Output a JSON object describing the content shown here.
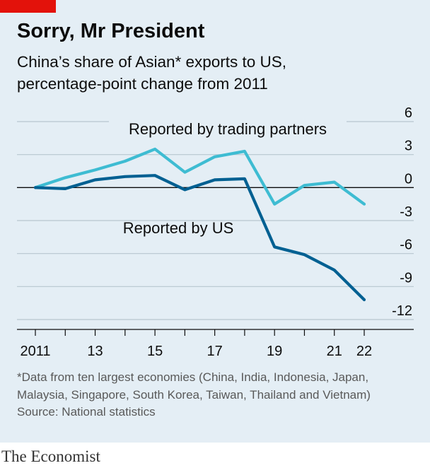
{
  "header": {
    "title": "Sorry, Mr President",
    "subtitle_line1": "China’s share of Asian* exports to US,",
    "subtitle_line2": "percentage-point change from 2011"
  },
  "notes": {
    "footnote_line1": "*Data from ten largest economies (China, India, Indonesia, Japan,",
    "footnote_line2": "Malaysia, Singapore, South Korea, Taiwan, Thailand and Vietnam)",
    "source": "Source: National statistics"
  },
  "brand": "The Economist",
  "colors": {
    "accent_red": "#e3120b",
    "background": "#e4eef5",
    "trading_partners": "#3ebcd2",
    "us": "#006092",
    "grid": "#b7c6cf",
    "text": "#0c0c0c",
    "muted": "#595959"
  },
  "chart_data": {
    "type": "line",
    "x": [
      2011,
      2012,
      2013,
      2014,
      2015,
      2016,
      2017,
      2018,
      2019,
      2020,
      2021,
      2022
    ],
    "x_tick_labels": [
      {
        "x": 2011,
        "label": "2011"
      },
      {
        "x": 2013,
        "label": "13"
      },
      {
        "x": 2015,
        "label": "15"
      },
      {
        "x": 2017,
        "label": "17"
      },
      {
        "x": 2019,
        "label": "19"
      },
      {
        "x": 2021,
        "label": "21"
      },
      {
        "x": 2022,
        "label": "22"
      }
    ],
    "y_ticks": [
      6,
      3,
      0,
      -3,
      -6,
      -9,
      -12
    ],
    "y_tick_labels": [
      "6",
      "3",
      "0",
      "-3",
      "-6",
      "-9",
      "-12"
    ],
    "xlim": [
      2011,
      2022
    ],
    "ylim": [
      -12,
      6
    ],
    "grid": true,
    "series": [
      {
        "name": "Reported by trading partners",
        "color": "#3ebcd2",
        "values": [
          0.0,
          0.9,
          1.6,
          2.4,
          3.5,
          1.4,
          2.8,
          3.3,
          -1.5,
          0.2,
          0.5,
          -1.5
        ]
      },
      {
        "name": "Reported by US",
        "color": "#006092",
        "values": [
          0.0,
          -0.1,
          0.7,
          1.0,
          1.1,
          -0.2,
          0.7,
          0.8,
          -5.4,
          -6.1,
          -7.5,
          -10.2
        ]
      }
    ]
  }
}
